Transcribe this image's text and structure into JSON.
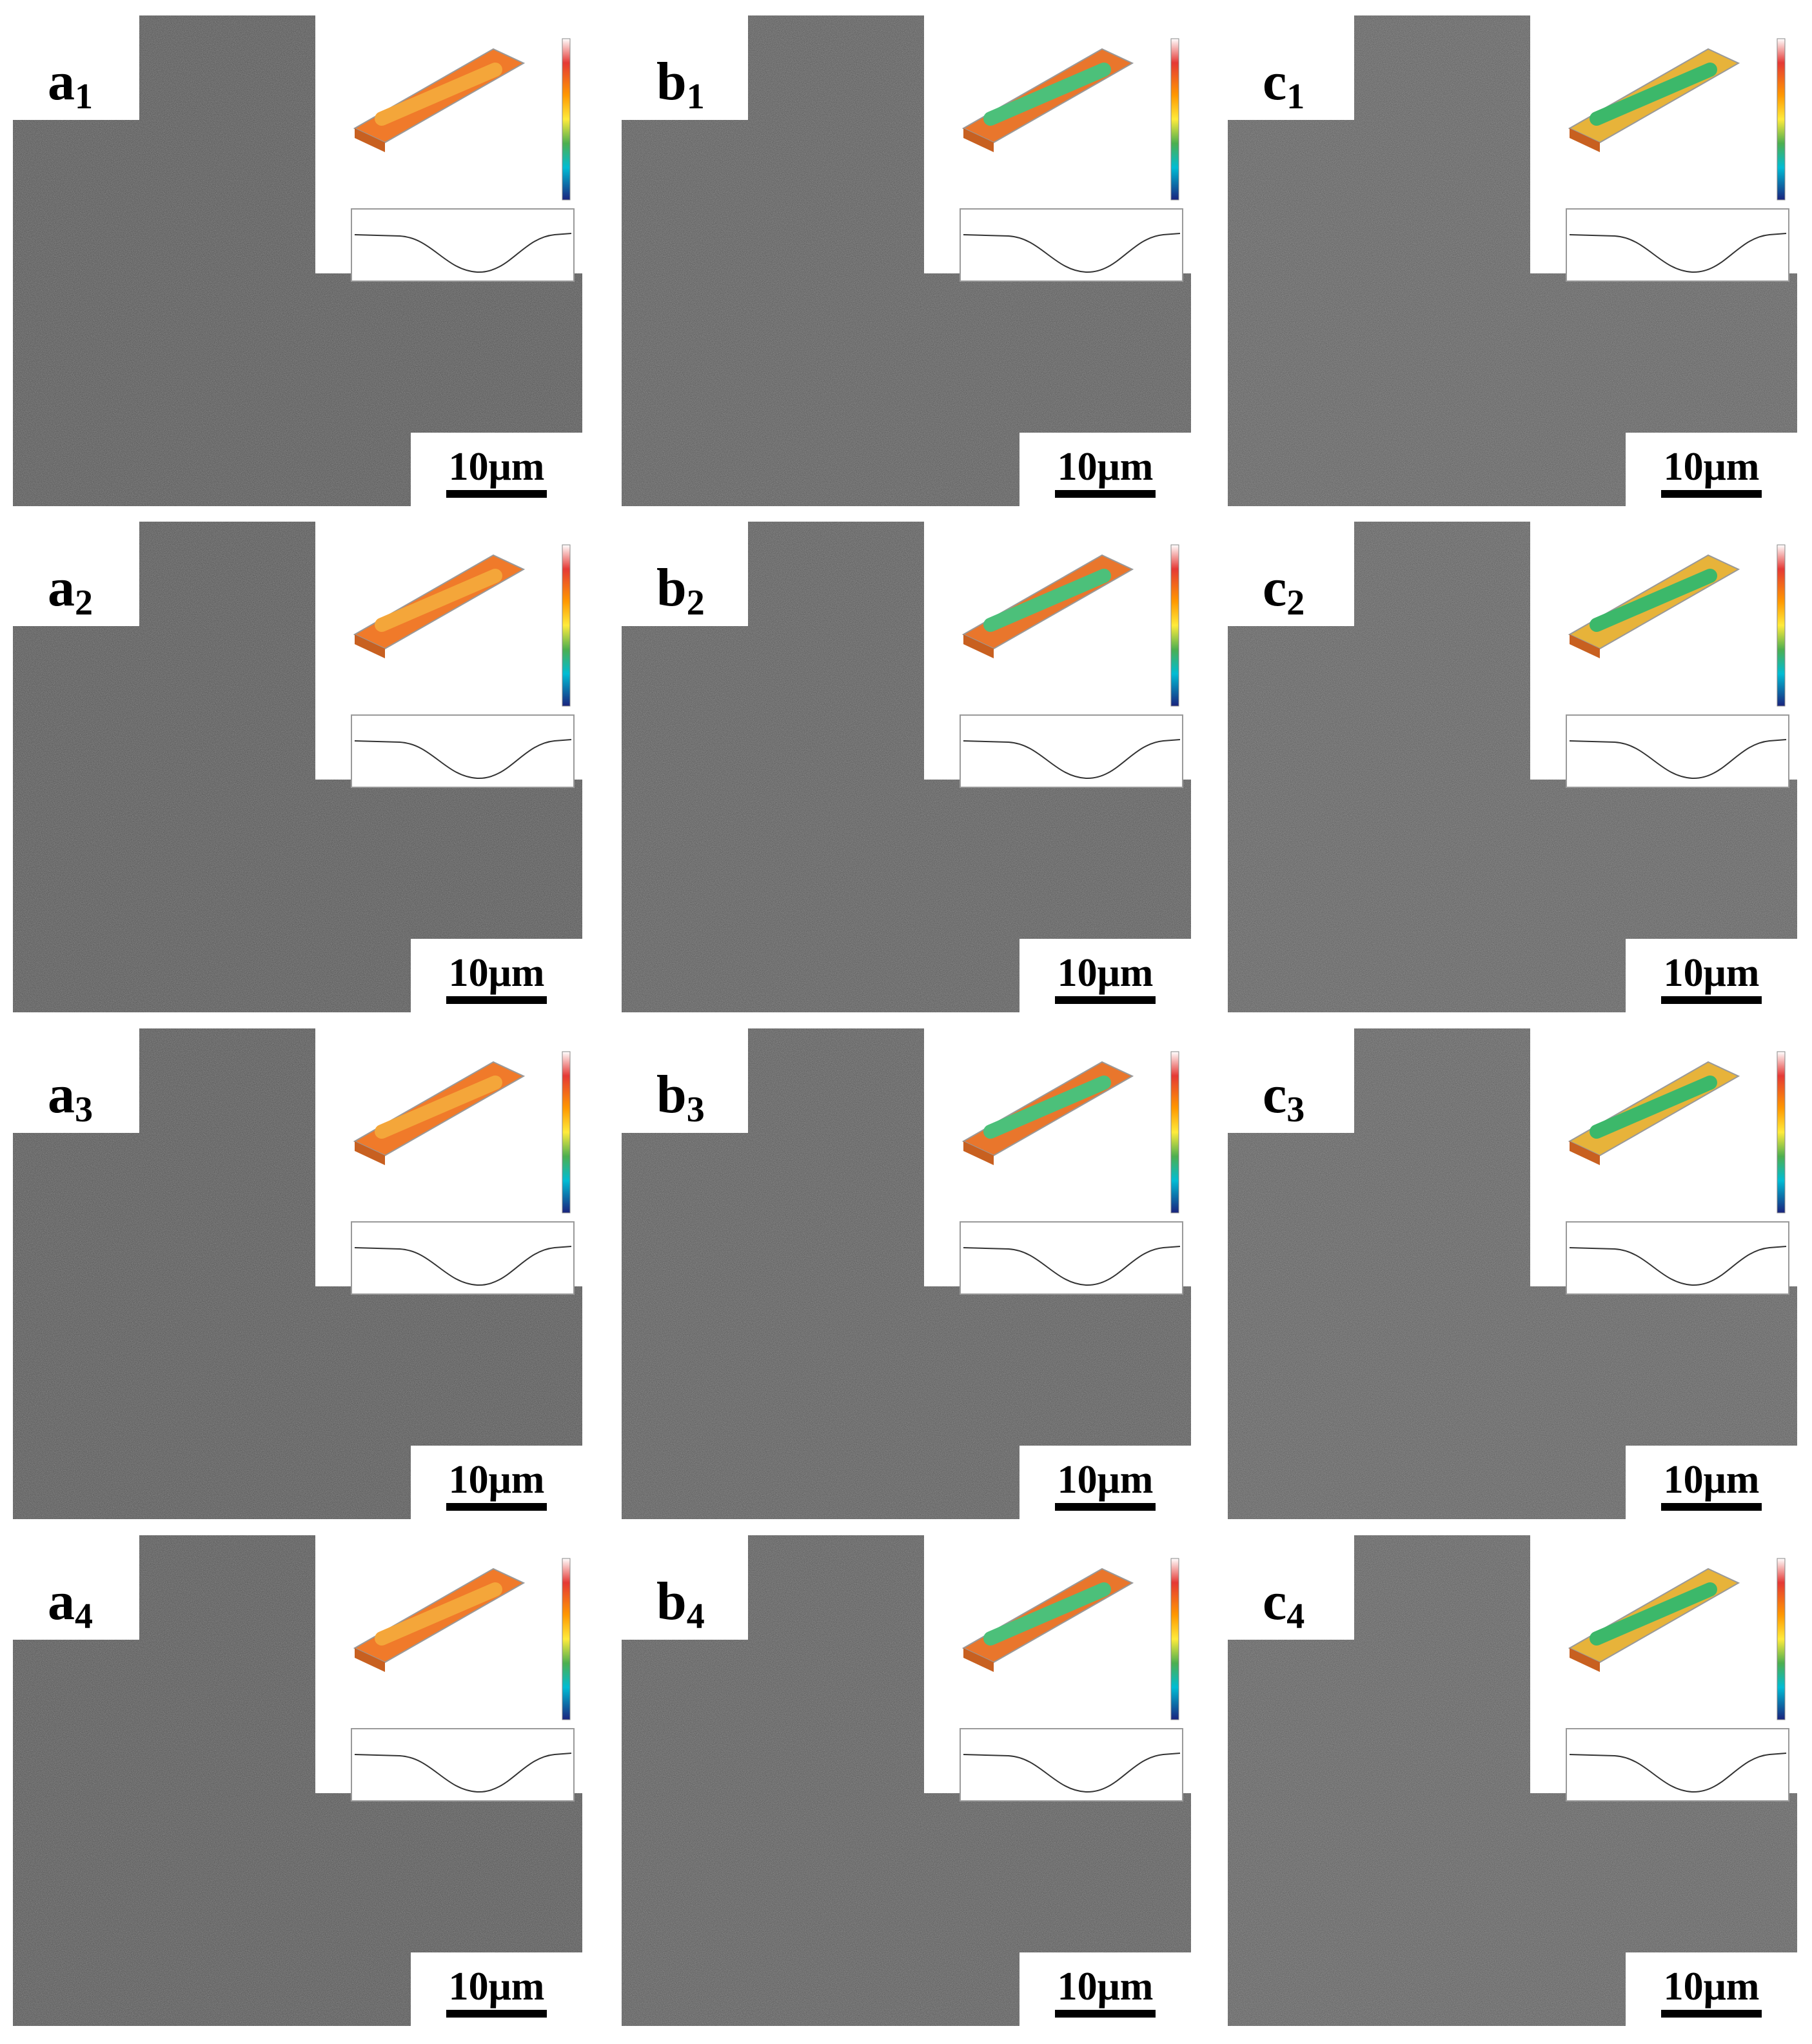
{
  "panels": [
    {
      "letter": "a",
      "sub": "1",
      "scale": "10μm"
    },
    {
      "letter": "b",
      "sub": "1",
      "scale": "10μm"
    },
    {
      "letter": "c",
      "sub": "1",
      "scale": "10μm"
    },
    {
      "letter": "a",
      "sub": "2",
      "scale": "10μm"
    },
    {
      "letter": "b",
      "sub": "2",
      "scale": "10μm"
    },
    {
      "letter": "c",
      "sub": "2",
      "scale": "10μm"
    },
    {
      "letter": "a",
      "sub": "3",
      "scale": "10μm"
    },
    {
      "letter": "b",
      "sub": "3",
      "scale": "10μm"
    },
    {
      "letter": "c",
      "sub": "3",
      "scale": "10μm"
    },
    {
      "letter": "a",
      "sub": "4",
      "scale": "10μm"
    },
    {
      "letter": "b",
      "sub": "4",
      "scale": "10μm"
    },
    {
      "letter": "c",
      "sub": "4",
      "scale": "10μm"
    }
  ]
}
